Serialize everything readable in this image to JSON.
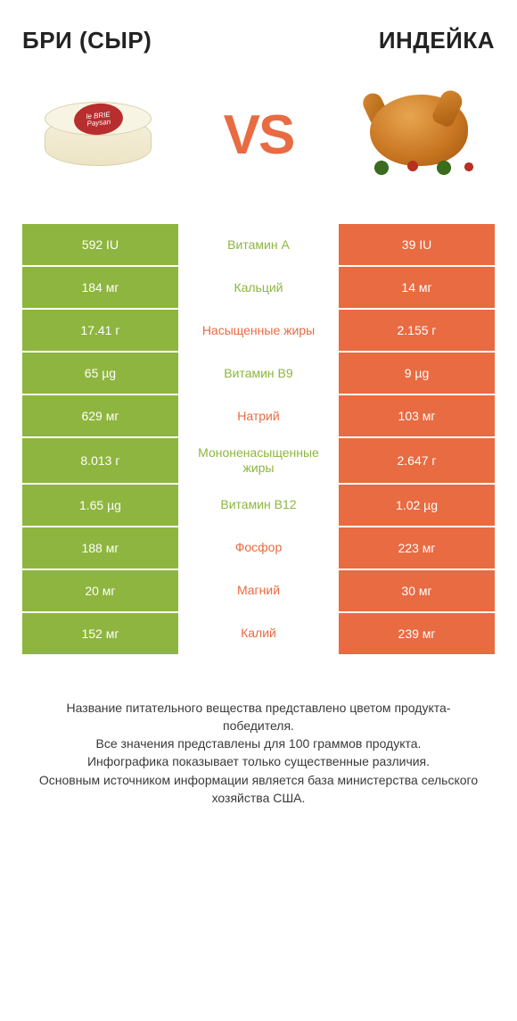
{
  "header": {
    "title_left": "БРИ (СЫР)",
    "title_right": "ИНДЕЙКА",
    "vs_label": "VS",
    "cheese_label_top": "le BRIE",
    "cheese_label_bottom": "Paysan"
  },
  "colors": {
    "left_bar": "#8eb53f",
    "right_bar": "#e86b42",
    "left_text": "#8eb53f",
    "right_text": "#e86b42",
    "vs": "#e86b42",
    "background": "#ffffff"
  },
  "table": {
    "type": "comparison-table",
    "rows": [
      {
        "left": "592 IU",
        "mid": "Витамин A",
        "right": "39 IU",
        "winner": "left"
      },
      {
        "left": "184 мг",
        "mid": "Кальций",
        "right": "14 мг",
        "winner": "left"
      },
      {
        "left": "17.41 г",
        "mid": "Насыщенные жиры",
        "right": "2.155 г",
        "winner": "right"
      },
      {
        "left": "65 µg",
        "mid": "Витамин B9",
        "right": "9 µg",
        "winner": "left"
      },
      {
        "left": "629 мг",
        "mid": "Натрий",
        "right": "103 мг",
        "winner": "right"
      },
      {
        "left": "8.013 г",
        "mid": "Мононенасыщенные жиры",
        "right": "2.647 г",
        "winner": "left"
      },
      {
        "left": "1.65 µg",
        "mid": "Витамин B12",
        "right": "1.02 µg",
        "winner": "left"
      },
      {
        "left": "188 мг",
        "mid": "Фосфор",
        "right": "223 мг",
        "winner": "right"
      },
      {
        "left": "20 мг",
        "mid": "Магний",
        "right": "30 мг",
        "winner": "right"
      },
      {
        "left": "152 мг",
        "mid": "Калий",
        "right": "239 мг",
        "winner": "right"
      }
    ]
  },
  "footer": {
    "line1": "Название питательного вещества представлено цветом продукта-победителя.",
    "line2": "Все значения представлены для 100 граммов продукта.",
    "line3": "Инфографика показывает только существенные различия.",
    "line4": "Основным источником информации является база министерства сельского хозяйства США."
  }
}
